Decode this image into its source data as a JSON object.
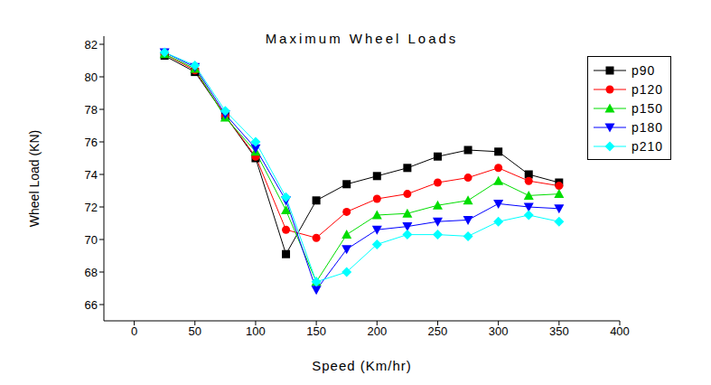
{
  "chart_data": {
    "type": "line",
    "title": "Maximum Wheel Loads",
    "x_label": "Speed (Km/hr)",
    "y_label": "Wheel Load (KN)",
    "x": [
      25,
      50,
      75,
      100,
      125,
      150,
      175,
      200,
      225,
      250,
      275,
      300,
      325,
      350
    ],
    "series": [
      {
        "name": "p90",
        "color": "#000000",
        "marker": "square",
        "values": [
          81.3,
          80.3,
          77.6,
          75.0,
          69.1,
          72.4,
          73.4,
          73.9,
          74.4,
          75.1,
          75.5,
          75.4,
          74.0,
          73.5
        ]
      },
      {
        "name": "p120",
        "color": "#ff0000",
        "marker": "circle",
        "values": [
          81.4,
          80.4,
          77.6,
          75.1,
          70.6,
          70.1,
          71.7,
          72.5,
          72.8,
          73.5,
          73.8,
          74.4,
          73.6,
          73.3
        ]
      },
      {
        "name": "p150",
        "color": "#00dd00",
        "marker": "triangle-up",
        "values": [
          81.4,
          80.5,
          77.5,
          75.4,
          71.8,
          67.4,
          70.3,
          71.5,
          71.6,
          72.1,
          72.4,
          73.6,
          72.7,
          72.8
        ]
      },
      {
        "name": "p180",
        "color": "#0000ff",
        "marker": "triangle-down",
        "values": [
          81.5,
          80.6,
          77.7,
          75.6,
          72.4,
          66.9,
          69.4,
          70.6,
          70.8,
          71.1,
          71.2,
          72.2,
          72.0,
          71.9
        ]
      },
      {
        "name": "p210",
        "color": "#00ffff",
        "marker": "diamond",
        "values": [
          81.5,
          80.7,
          77.9,
          76.0,
          72.6,
          67.4,
          68.0,
          69.7,
          70.3,
          70.3,
          70.2,
          71.1,
          71.5,
          71.1
        ]
      }
    ],
    "xlim": [
      -25,
      400
    ],
    "xticks": [
      0,
      50,
      100,
      150,
      200,
      250,
      300,
      350,
      400
    ],
    "ylim": [
      65,
      82.5
    ],
    "yticks": [
      66,
      68,
      70,
      72,
      74,
      76,
      78,
      80,
      82
    ],
    "legend": "upper right"
  }
}
